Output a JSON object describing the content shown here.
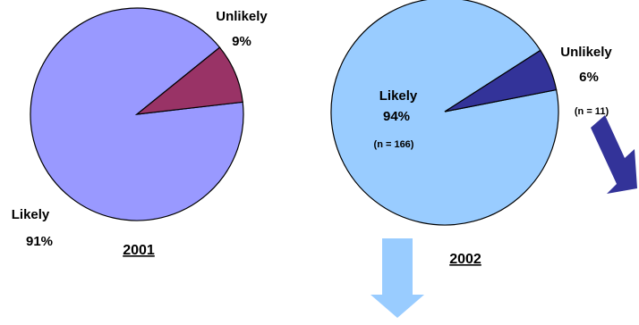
{
  "chart_data": [
    {
      "type": "pie",
      "year": "2001",
      "slices": [
        {
          "label": "Likely",
          "value": 91,
          "pct": "91%",
          "color": "#9999ff"
        },
        {
          "label": "Unlikely",
          "value": 9,
          "pct": "9%",
          "color": "#993366"
        }
      ]
    },
    {
      "type": "pie",
      "year": "2002",
      "slices": [
        {
          "label": "Likely",
          "value": 94,
          "pct": "94%",
          "n": "(n = 166)",
          "color": "#99ccff"
        },
        {
          "label": "Unlikely",
          "value": 6,
          "pct": "6%",
          "n": "(n = 11)",
          "color": "#333399"
        }
      ]
    }
  ],
  "arrow_colors": {
    "light": "#99ccff",
    "dark": "#333399"
  }
}
